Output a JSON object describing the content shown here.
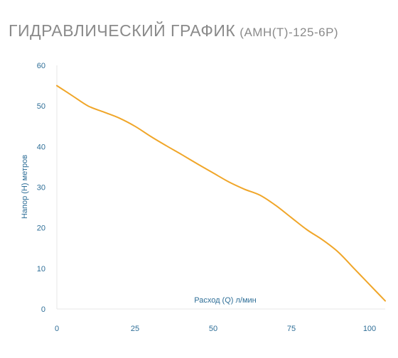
{
  "header": {
    "title": "ГИДРАВЛИЧЕСКИЙ ГРАФИК",
    "model": "(АМН(Т)-125-6Р)"
  },
  "colors": {
    "curve": "#f0a629",
    "axis": "#e7e7e7",
    "text": "#2e6e97",
    "title": "#8a8a8a"
  },
  "chart_data": {
    "type": "line",
    "title": "ГИДРАВЛИЧЕСКИЙ ГРАФИК (АМН(Т)-125-6Р)",
    "xlabel": "Расход (Q) л/мин",
    "ylabel": "Напор (Н) метров",
    "xlim": [
      0,
      105
    ],
    "ylim": [
      0,
      60
    ],
    "x_ticks": [
      "0",
      "25",
      "50",
      "75",
      "100"
    ],
    "y_ticks": [
      "0",
      "10",
      "20",
      "30",
      "40",
      "50",
      "60"
    ],
    "grid": false,
    "series": [
      {
        "x": [
          0,
          5,
          10,
          15,
          20,
          25,
          30,
          35,
          40,
          45,
          50,
          55,
          60,
          65,
          70,
          75,
          80,
          85,
          90,
          95,
          100,
          105
        ],
        "values": [
          55,
          52.5,
          50,
          48.5,
          47,
          45,
          42.5,
          40.2,
          38,
          35.7,
          33.5,
          31.3,
          29.5,
          28,
          25.5,
          22.5,
          19.5,
          17,
          14,
          10,
          6,
          2
        ]
      }
    ]
  }
}
